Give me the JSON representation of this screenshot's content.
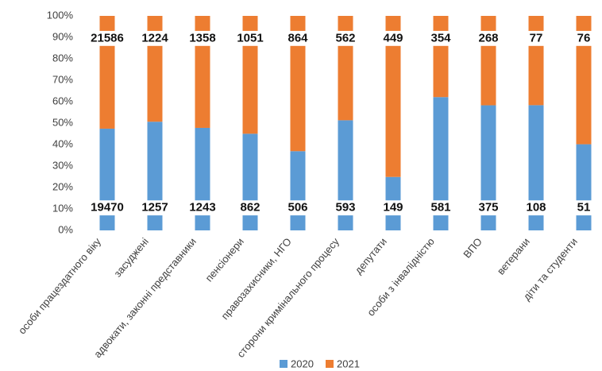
{
  "chart_data": {
    "type": "stacked_percent_bar",
    "categories": [
      "особи працездатного віку",
      "засуджені",
      "адвокати, законні представники",
      "пенсіонери",
      "правозахисники, НГО",
      "сторони кримінального процесу",
      "депутати",
      "особи з інвалідністю",
      "ВПО",
      "ветерани",
      "діти та студенти"
    ],
    "series": [
      {
        "name": "2020",
        "color": "#5b9bd5",
        "values": [
          19470,
          1257,
          1243,
          862,
          506,
          593,
          149,
          581,
          375,
          108,
          51
        ]
      },
      {
        "name": "2021",
        "color": "#ed7d31",
        "values": [
          21586,
          1224,
          1358,
          1051,
          864,
          562,
          449,
          354,
          268,
          77,
          76
        ]
      }
    ],
    "ylim": [
      0,
      100
    ],
    "yticks": [
      {
        "value": 0,
        "label": "0%"
      },
      {
        "value": 10,
        "label": "10%"
      },
      {
        "value": 20,
        "label": "20%"
      },
      {
        "value": 30,
        "label": "30%"
      },
      {
        "value": 40,
        "label": "40%"
      },
      {
        "value": 50,
        "label": "50%"
      },
      {
        "value": 60,
        "label": "60%"
      },
      {
        "value": 70,
        "label": "70%"
      },
      {
        "value": 80,
        "label": "80%"
      },
      {
        "value": 90,
        "label": "90%"
      },
      {
        "value": 100,
        "label": "100%"
      }
    ],
    "legend": "bottom"
  }
}
